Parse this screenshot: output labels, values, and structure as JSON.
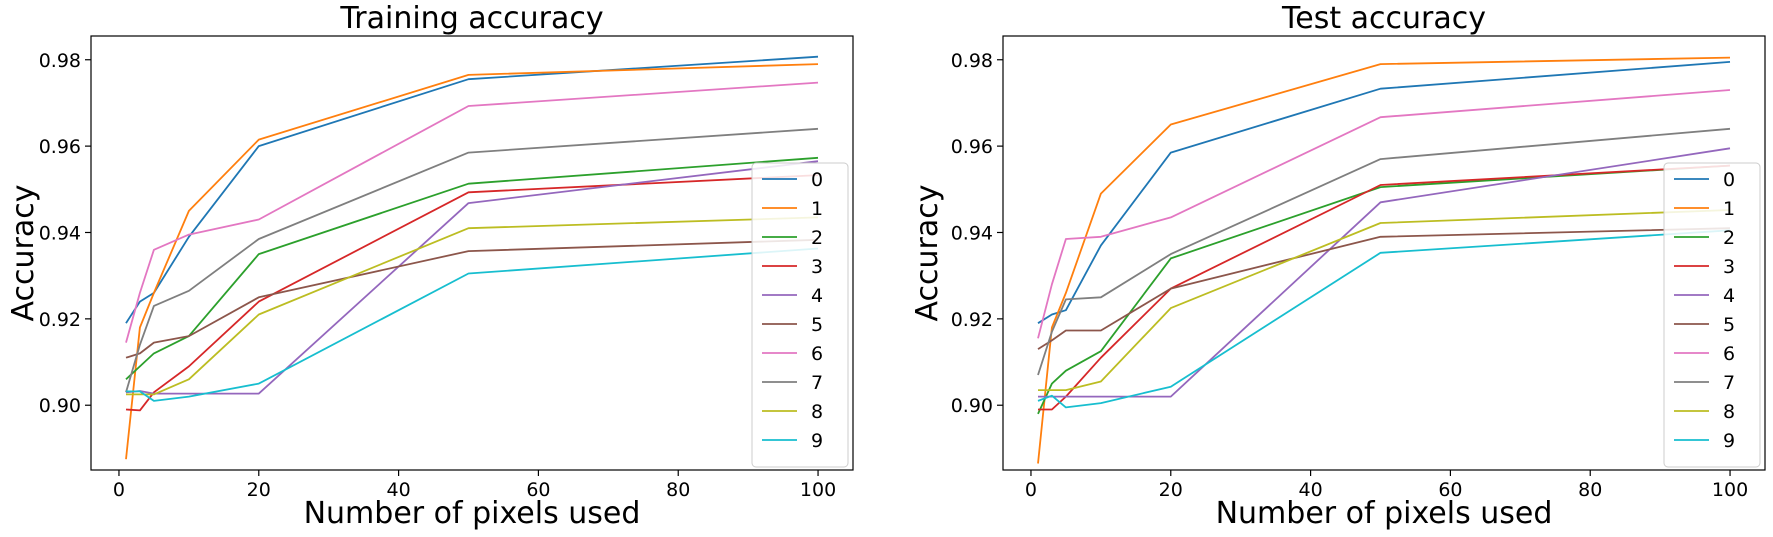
{
  "colors": [
    "#1f77b4",
    "#ff7f0e",
    "#2ca02c",
    "#d62728",
    "#9467bd",
    "#8c564b",
    "#e377c2",
    "#7f7f7f",
    "#bcbd22",
    "#17becf"
  ],
  "chart_data": [
    {
      "type": "line",
      "title": "Training accuracy",
      "xlabel": "Number of pixels used",
      "ylabel": "Accuracy",
      "xlim": [
        -4,
        105
      ],
      "ylim": [
        0.885,
        0.9855
      ],
      "xticks": [
        0,
        20,
        40,
        60,
        80,
        100
      ],
      "yticks": [
        0.9,
        0.92,
        0.94,
        0.96,
        0.98
      ],
      "xtick_labels": [
        "0",
        "20",
        "40",
        "60",
        "80",
        "100"
      ],
      "ytick_labels": [
        "0.90",
        "0.92",
        "0.94",
        "0.96",
        "0.98"
      ],
      "legend_position": "right",
      "grid": false,
      "x": [
        1,
        3,
        5,
        10,
        20,
        50,
        100
      ],
      "series": [
        {
          "name": "0",
          "values": [
            0.919,
            0.924,
            0.926,
            0.939,
            0.96,
            0.9755,
            0.9807
          ]
        },
        {
          "name": "1",
          "values": [
            0.8875,
            0.918,
            0.926,
            0.945,
            0.9615,
            0.9765,
            0.979
          ]
        },
        {
          "name": "2",
          "values": [
            0.906,
            0.909,
            0.912,
            0.916,
            0.935,
            0.9513,
            0.9573
          ]
        },
        {
          "name": "3",
          "values": [
            0.899,
            0.8988,
            0.903,
            0.909,
            0.924,
            0.9493,
            0.9533
          ]
        },
        {
          "name": "4",
          "values": [
            0.903,
            0.9033,
            0.9027,
            0.9027,
            0.9027,
            0.9468,
            0.9565
          ]
        },
        {
          "name": "5",
          "values": [
            0.911,
            0.912,
            0.9145,
            0.916,
            0.925,
            0.9357,
            0.9383
          ]
        },
        {
          "name": "6",
          "values": [
            0.9145,
            0.926,
            0.936,
            0.9395,
            0.943,
            0.9693,
            0.9747
          ]
        },
        {
          "name": "7",
          "values": [
            0.903,
            0.914,
            0.923,
            0.9265,
            0.9385,
            0.9585,
            0.964
          ]
        },
        {
          "name": "8",
          "values": [
            0.9025,
            0.9025,
            0.9025,
            0.906,
            0.921,
            0.941,
            0.9435
          ]
        },
        {
          "name": "9",
          "values": [
            0.9032,
            0.9032,
            0.901,
            0.902,
            0.905,
            0.9305,
            0.9363
          ]
        }
      ]
    },
    {
      "type": "line",
      "title": "Test accuracy",
      "xlabel": "Number of pixels used",
      "ylabel": "Accuracy",
      "xlim": [
        -4,
        105
      ],
      "ylim": [
        0.885,
        0.9855
      ],
      "xticks": [
        0,
        20,
        40,
        60,
        80,
        100
      ],
      "yticks": [
        0.9,
        0.92,
        0.94,
        0.96,
        0.98
      ],
      "xtick_labels": [
        "0",
        "20",
        "40",
        "60",
        "80",
        "100"
      ],
      "ytick_labels": [
        "0.90",
        "0.92",
        "0.94",
        "0.96",
        "0.98"
      ],
      "legend_position": "right",
      "grid": false,
      "x": [
        1,
        3,
        5,
        10,
        20,
        50,
        100
      ],
      "series": [
        {
          "name": "0",
          "values": [
            0.919,
            0.921,
            0.922,
            0.937,
            0.9585,
            0.9733,
            0.9795
          ]
        },
        {
          "name": "1",
          "values": [
            0.8865,
            0.918,
            0.926,
            0.949,
            0.965,
            0.979,
            0.9805
          ]
        },
        {
          "name": "2",
          "values": [
            0.898,
            0.905,
            0.908,
            0.9125,
            0.934,
            0.9505,
            0.9555
          ]
        },
        {
          "name": "3",
          "values": [
            0.899,
            0.899,
            0.902,
            0.911,
            0.927,
            0.951,
            0.9555
          ]
        },
        {
          "name": "4",
          "values": [
            0.902,
            0.902,
            0.902,
            0.902,
            0.902,
            0.947,
            0.9595
          ]
        },
        {
          "name": "5",
          "values": [
            0.913,
            0.915,
            0.9173,
            0.9173,
            0.927,
            0.939,
            0.941
          ]
        },
        {
          "name": "6",
          "values": [
            0.9155,
            0.928,
            0.9385,
            0.939,
            0.9435,
            0.9667,
            0.973
          ]
        },
        {
          "name": "7",
          "values": [
            0.907,
            0.917,
            0.9245,
            0.925,
            0.935,
            0.957,
            0.964
          ]
        },
        {
          "name": "8",
          "values": [
            0.9035,
            0.9035,
            0.9035,
            0.9055,
            0.9225,
            0.9422,
            0.9452
          ]
        },
        {
          "name": "9",
          "values": [
            0.901,
            0.9022,
            0.8995,
            0.9005,
            0.9043,
            0.9353,
            0.9405
          ]
        }
      ]
    }
  ]
}
